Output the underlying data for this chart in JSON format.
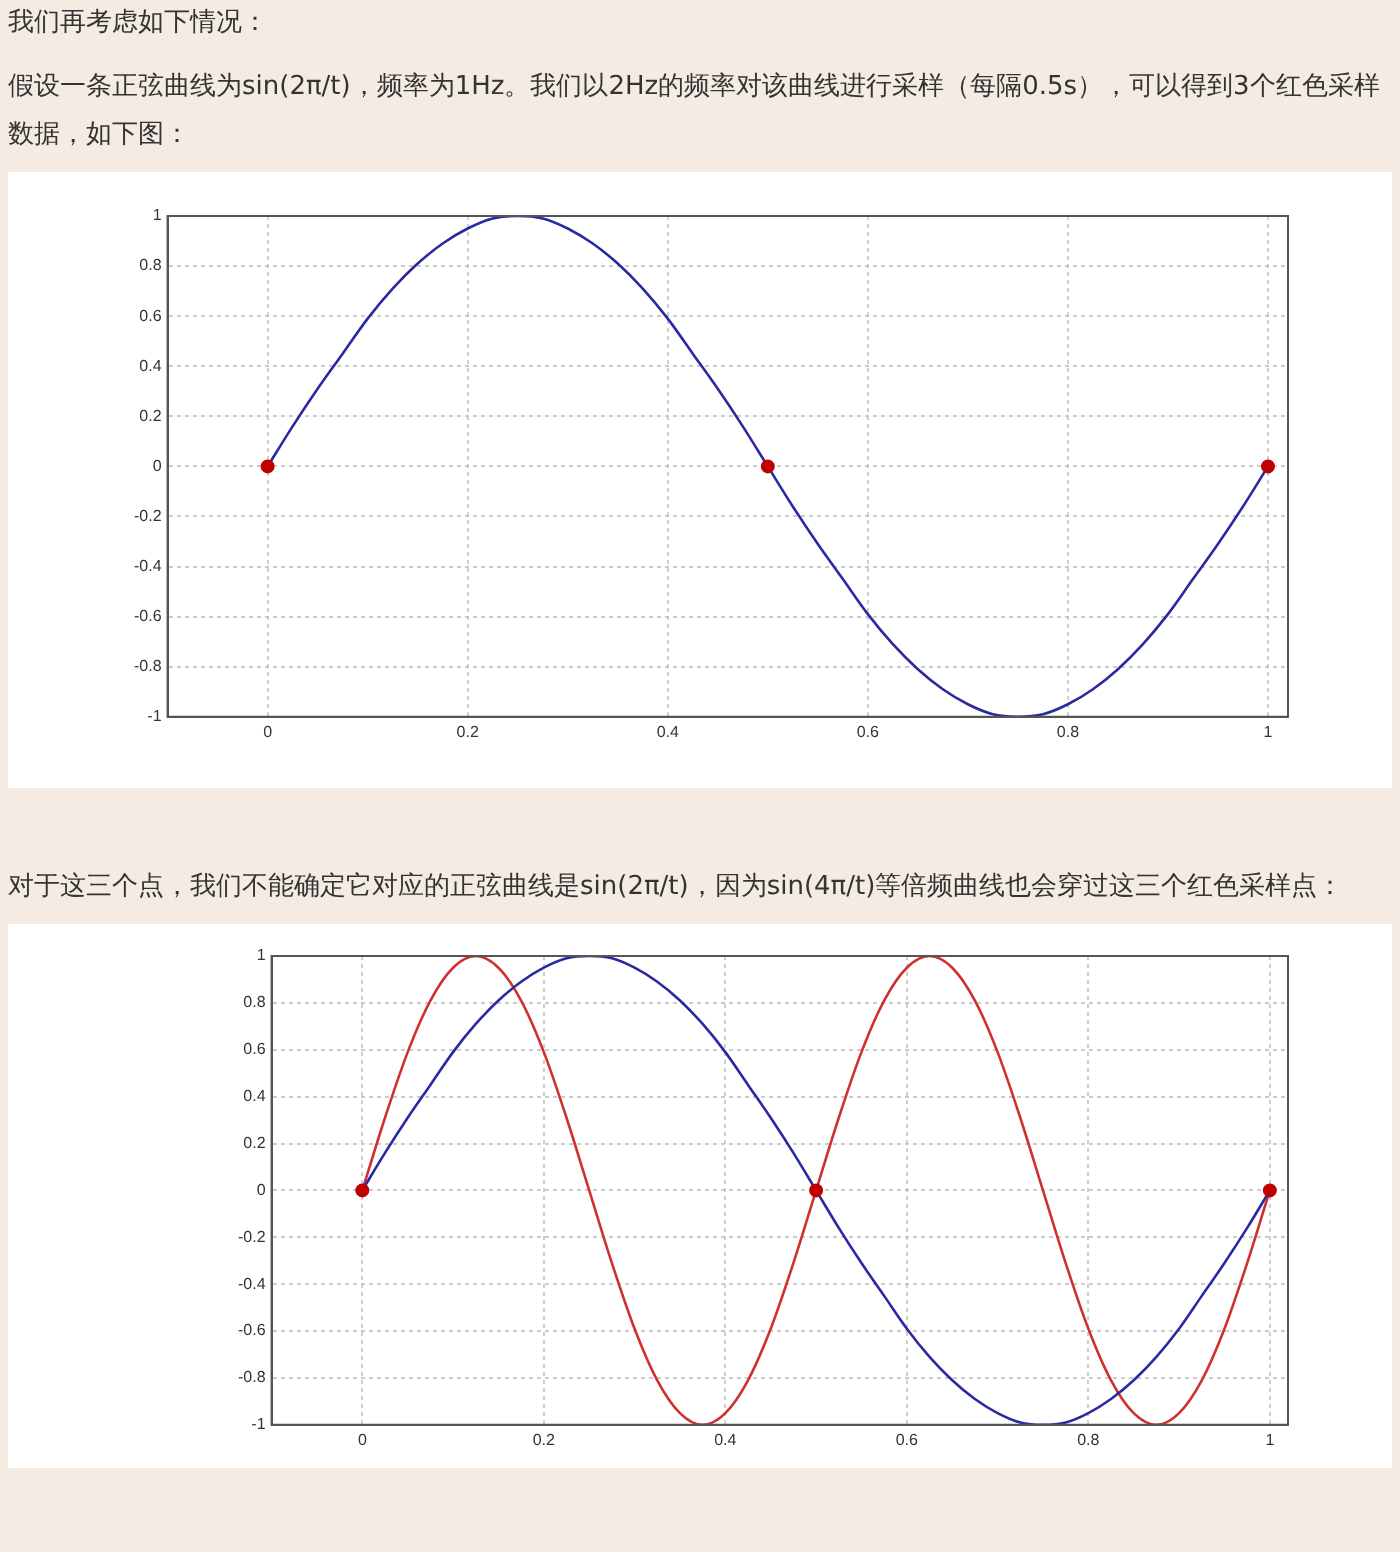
{
  "chart_data": [
    {
      "type": "line",
      "title": "我们再考虑如下情况：",
      "subtitle": "假设一条正弦曲线为sin(2π/t)，频率为1Hz。我们以2Hz的频率对该曲线进行采样（每隔0.5s），可以得到3个红色采样数据，如下图：",
      "xlim": [
        -0.1,
        1.02
      ],
      "ylim": [
        -1,
        1
      ],
      "xticks": [
        0,
        0.2,
        0.4,
        0.6,
        0.8,
        1
      ],
      "yticks": [
        -1,
        -0.8,
        -0.6,
        -0.4,
        -0.2,
        0,
        0.2,
        0.4,
        0.6,
        0.8,
        1
      ],
      "grid": true,
      "line_style": "solid",
      "series": [
        {
          "type": "line",
          "color": "#2a2aa0",
          "marker": "none",
          "x": [
            0,
            0.025,
            0.05,
            0.075,
            0.1,
            0.125,
            0.15,
            0.175,
            0.2,
            0.225,
            0.25,
            0.275,
            0.3,
            0.325,
            0.35,
            0.375,
            0.4,
            0.425,
            0.45,
            0.475,
            0.5,
            0.525,
            0.55,
            0.575,
            0.6,
            0.625,
            0.65,
            0.675,
            0.7,
            0.725,
            0.75,
            0.775,
            0.8,
            0.825,
            0.85,
            0.875,
            0.9,
            0.925,
            0.95,
            0.975,
            1
          ],
          "values": [
            0,
            0.16,
            0.31,
            0.45,
            0.59,
            0.71,
            0.81,
            0.89,
            0.95,
            0.99,
            1,
            0.99,
            0.95,
            0.89,
            0.81,
            0.71,
            0.59,
            0.45,
            0.31,
            0.16,
            0,
            -0.16,
            -0.31,
            -0.45,
            -0.59,
            -0.71,
            -0.81,
            -0.89,
            -0.95,
            -0.99,
            -1,
            -0.99,
            -0.95,
            -0.89,
            -0.81,
            -0.71,
            -0.59,
            -0.45,
            -0.31,
            -0.16,
            0
          ]
        },
        {
          "type": "scatter",
          "color": "#c00000",
          "marker": "circle",
          "x": [
            0,
            0.5,
            1
          ],
          "values": [
            0,
            0,
            0
          ]
        }
      ]
    },
    {
      "type": "line",
      "title": "对于这三个点，我们不能确定它对应的正弦曲线是sin(2π/t)，因为sin(4π/t)等倍频曲线也会穿过这三个红色采样点：",
      "xlim": [
        -0.1,
        1.02
      ],
      "ylim": [
        -1,
        1
      ],
      "xticks": [
        0,
        0.2,
        0.4,
        0.6,
        0.8,
        1
      ],
      "yticks": [
        -1,
        -0.8,
        -0.6,
        -0.4,
        -0.2,
        0,
        0.2,
        0.4,
        0.6,
        0.8,
        1
      ],
      "grid": true,
      "line_style": "solid",
      "series": [
        {
          "type": "line",
          "color": "#2a2aa0",
          "marker": "none",
          "x": [
            0,
            0.025,
            0.05,
            0.075,
            0.1,
            0.125,
            0.15,
            0.175,
            0.2,
            0.225,
            0.25,
            0.275,
            0.3,
            0.325,
            0.35,
            0.375,
            0.4,
            0.425,
            0.45,
            0.475,
            0.5,
            0.525,
            0.55,
            0.575,
            0.6,
            0.625,
            0.65,
            0.675,
            0.7,
            0.725,
            0.75,
            0.775,
            0.8,
            0.825,
            0.85,
            0.875,
            0.9,
            0.925,
            0.95,
            0.975,
            1
          ],
          "values": [
            0,
            0.16,
            0.31,
            0.45,
            0.59,
            0.71,
            0.81,
            0.89,
            0.95,
            0.99,
            1,
            0.99,
            0.95,
            0.89,
            0.81,
            0.71,
            0.59,
            0.45,
            0.31,
            0.16,
            0,
            -0.16,
            -0.31,
            -0.45,
            -0.59,
            -0.71,
            -0.81,
            -0.89,
            -0.95,
            -0.99,
            -1,
            -0.99,
            -0.95,
            -0.89,
            -0.81,
            -0.71,
            -0.59,
            -0.45,
            -0.31,
            -0.16,
            0
          ]
        },
        {
          "type": "line",
          "color": "#d03030",
          "marker": "none",
          "x": [
            0,
            0.025,
            0.05,
            0.075,
            0.1,
            0.125,
            0.15,
            0.175,
            0.2,
            0.225,
            0.25,
            0.275,
            0.3,
            0.325,
            0.35,
            0.375,
            0.4,
            0.425,
            0.45,
            0.475,
            0.5,
            0.525,
            0.55,
            0.575,
            0.6,
            0.625,
            0.65,
            0.675,
            0.7,
            0.725,
            0.75,
            0.775,
            0.8,
            0.825,
            0.85,
            0.875,
            0.9,
            0.925,
            0.95,
            0.975,
            1
          ],
          "values": [
            0,
            0.31,
            0.59,
            0.81,
            0.95,
            1,
            0.95,
            0.81,
            0.59,
            0.31,
            0,
            -0.31,
            -0.59,
            -0.81,
            -0.95,
            -1,
            -0.95,
            -0.81,
            -0.59,
            -0.31,
            0,
            0.31,
            0.59,
            0.81,
            0.95,
            1,
            0.95,
            0.81,
            0.59,
            0.31,
            0,
            -0.31,
            -0.59,
            -0.81,
            -0.95,
            -1,
            -0.95,
            -0.81,
            -0.59,
            -0.31,
            0
          ]
        },
        {
          "type": "scatter",
          "color": "#c00000",
          "marker": "circle",
          "x": [
            0,
            0.5,
            1
          ],
          "values": [
            0,
            0,
            0
          ]
        }
      ]
    }
  ]
}
